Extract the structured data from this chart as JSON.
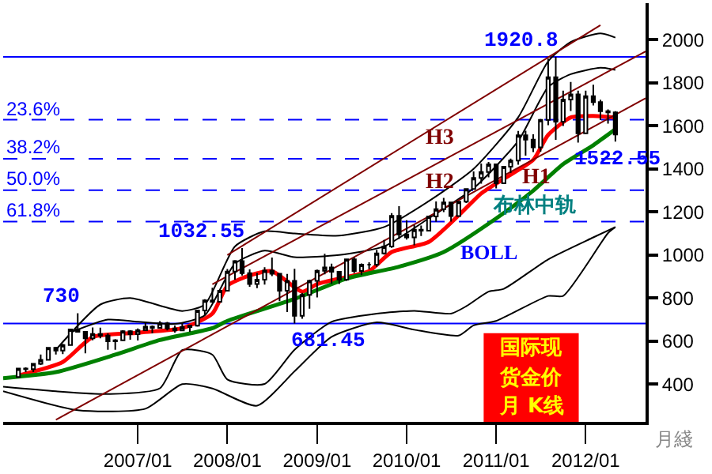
{
  "chart_data": {
    "type": "candlestick",
    "xlabel": "月綫",
    "x": [
      "2005-09",
      "2005-10",
      "2005-11",
      "2005-12",
      "2006-01",
      "2006-02",
      "2006-03",
      "2006-04",
      "2006-05",
      "2006-06",
      "2006-07",
      "2006-08",
      "2006-09",
      "2006-10",
      "2006-11",
      "2006-12",
      "2007-01",
      "2007-02",
      "2007-03",
      "2007-04",
      "2007-05",
      "2007-06",
      "2007-07",
      "2007-08",
      "2007-09",
      "2007-10",
      "2007-11",
      "2007-12",
      "2008-01",
      "2008-02",
      "2008-03",
      "2008-04",
      "2008-05",
      "2008-06",
      "2008-07",
      "2008-08",
      "2008-09",
      "2008-10",
      "2008-11",
      "2008-12",
      "2009-01",
      "2009-02",
      "2009-03",
      "2009-04",
      "2009-05",
      "2009-06",
      "2009-07",
      "2009-08",
      "2009-09",
      "2009-10",
      "2009-11",
      "2009-12",
      "2010-01",
      "2010-02",
      "2010-03",
      "2010-04",
      "2010-05",
      "2010-06",
      "2010-07",
      "2010-08",
      "2010-09",
      "2010-10",
      "2010-11",
      "2010-12",
      "2011-01",
      "2011-02",
      "2011-03",
      "2011-04",
      "2011-05",
      "2011-06",
      "2011-07",
      "2011-08",
      "2011-09",
      "2011-10",
      "2011-11",
      "2011-12",
      "2012-01",
      "2012-02",
      "2012-03",
      "2012-04",
      "2012-05"
    ],
    "ohlc": [
      [
        433,
        474,
        432,
        473
      ],
      [
        473,
        478,
        456,
        470
      ],
      [
        470,
        497,
        456,
        495
      ],
      [
        495,
        538,
        489,
        513
      ],
      [
        513,
        571,
        513,
        569
      ],
      [
        569,
        574,
        538,
        556
      ],
      [
        556,
        587,
        540,
        582
      ],
      [
        582,
        654,
        582,
        654
      ],
      [
        654,
        730,
        642,
        643
      ],
      [
        643,
        646,
        543,
        613
      ],
      [
        613,
        664,
        604,
        633
      ],
      [
        633,
        663,
        613,
        626
      ],
      [
        626,
        636,
        560,
        599
      ],
      [
        599,
        609,
        560,
        604
      ],
      [
        604,
        651,
        603,
        646
      ],
      [
        646,
        651,
        607,
        632
      ],
      [
        632,
        659,
        603,
        651
      ],
      [
        651,
        691,
        648,
        667
      ],
      [
        667,
        673,
        636,
        662
      ],
      [
        662,
        693,
        660,
        683
      ],
      [
        683,
        689,
        650,
        659
      ],
      [
        659,
        673,
        640,
        650
      ],
      [
        650,
        684,
        647,
        665
      ],
      [
        665,
        675,
        643,
        672
      ],
      [
        672,
        745,
        667,
        742
      ],
      [
        742,
        795,
        722,
        789
      ],
      [
        789,
        848,
        778,
        783
      ],
      [
        783,
        839,
        781,
        834
      ],
      [
        834,
        935,
        834,
        923
      ],
      [
        923,
        976,
        886,
        972
      ],
      [
        972,
        1032.55,
        905,
        916
      ],
      [
        916,
        933,
        853,
        865
      ],
      [
        865,
        917,
        846,
        886
      ],
      [
        886,
        943,
        863,
        928
      ],
      [
        928,
        988,
        902,
        913
      ],
      [
        913,
        915,
        786,
        834
      ],
      [
        834,
        912,
        735,
        880
      ],
      [
        880,
        936,
        681.45,
        718
      ],
      [
        718,
        824,
        704,
        815
      ],
      [
        815,
        886,
        751,
        880
      ],
      [
        880,
        932,
        803,
        927
      ],
      [
        927,
        1006,
        910,
        942
      ],
      [
        942,
        960,
        866,
        922
      ],
      [
        922,
        925,
        865,
        886
      ],
      [
        886,
        981,
        880,
        980
      ],
      [
        980,
        989,
        916,
        926
      ],
      [
        926,
        961,
        907,
        955
      ],
      [
        955,
        966,
        934,
        955
      ],
      [
        955,
        1024,
        945,
        1008
      ],
      [
        1008,
        1070,
        1002,
        1040
      ],
      [
        1040,
        1195,
        1033,
        1182
      ],
      [
        1182,
        1227,
        1075,
        1096
      ],
      [
        1096,
        1162,
        1072,
        1082
      ],
      [
        1082,
        1140,
        1045,
        1118
      ],
      [
        1118,
        1137,
        1088,
        1113
      ],
      [
        1113,
        1181,
        1111,
        1179
      ],
      [
        1179,
        1249,
        1154,
        1213
      ],
      [
        1213,
        1265,
        1199,
        1244
      ],
      [
        1244,
        1245,
        1155,
        1181
      ],
      [
        1181,
        1250,
        1180,
        1248
      ],
      [
        1248,
        1310,
        1242,
        1307
      ],
      [
        1307,
        1388,
        1305,
        1358
      ],
      [
        1358,
        1425,
        1331,
        1386
      ],
      [
        1386,
        1432,
        1361,
        1421
      ],
      [
        1421,
        1424,
        1309,
        1333
      ],
      [
        1333,
        1411,
        1330,
        1410
      ],
      [
        1410,
        1448,
        1381,
        1439
      ],
      [
        1439,
        1576,
        1420,
        1556
      ],
      [
        1556,
        1577,
        1462,
        1536
      ],
      [
        1536,
        1561,
        1478,
        1500
      ],
      [
        1500,
        1632,
        1480,
        1628
      ],
      [
        1628,
        1912,
        1603,
        1826
      ],
      [
        1826,
        1920.8,
        1535,
        1620
      ],
      [
        1620,
        1764,
        1599,
        1722
      ],
      [
        1722,
        1804,
        1669,
        1746
      ],
      [
        1746,
        1764,
        1522.55,
        1565
      ],
      [
        1565,
        1764,
        1564,
        1738
      ],
      [
        1738,
        1791,
        1695,
        1710
      ],
      [
        1710,
        1721,
        1627,
        1668
      ],
      [
        1668,
        1676,
        1610,
        1663
      ],
      [
        1663,
        1668,
        1527,
        1560
      ]
    ],
    "color": "#000000",
    "series": [
      {
        "type": "line",
        "color": "#ff0000",
        "x": [
          "2005-09",
          "2006-03",
          "2006-07",
          "2007-01",
          "2007-07",
          "2007-11",
          "2008-01",
          "2008-04",
          "2008-07",
          "2008-11",
          "2009-01",
          "2009-05",
          "2009-08",
          "2009-11",
          "2010-04",
          "2010-08",
          "2010-11",
          "2011-02",
          "2011-06",
          "2011-08",
          "2011-11",
          "2012-02",
          "2012-05"
        ],
        "values": [
          440,
          503,
          619,
          639,
          660,
          728,
          857,
          905,
          925,
          830,
          865,
          898,
          925,
          1014,
          1061,
          1184,
          1286,
          1354,
          1442,
          1558,
          1639,
          1646,
          1639
        ]
      },
      {
        "type": "line",
        "color": "#008000",
        "x": [
          "2005-07",
          "2006-02",
          "2006-10",
          "2007-04",
          "2007-11",
          "2008-01",
          "2008-10",
          "2009-05",
          "2009-12",
          "2010-06",
          "2011-01",
          "2011-06",
          "2011-10",
          "2012-02",
          "2012-05"
        ],
        "values": [
          428,
          456,
          537,
          605,
          660,
          694,
          796,
          891,
          946,
          1014,
          1170,
          1299,
          1422,
          1510,
          1585
        ]
      },
      {
        "type": "line",
        "color": "#000000",
        "x": [
          "2006-02",
          "2006-08",
          "2006-12",
          "2007-07",
          "2007-10",
          "2008-02",
          "2008-06",
          "2008-10",
          "2009-04",
          "2009-10",
          "2010-04",
          "2010-10",
          "2011-04",
          "2011-08",
          "2011-11",
          "2012-03",
          "2012-05"
        ],
        "values": [
          560,
          770,
          800,
          740,
          770,
          1040,
          1110,
          1100,
          1090,
          1130,
          1250,
          1400,
          1640,
          1900,
          1990,
          2030,
          2010
        ]
      },
      {
        "type": "line",
        "color": "#000000",
        "x": [
          "2006-04",
          "2006-09",
          "2007-01",
          "2007-06",
          "2007-10",
          "2008-02",
          "2008-06",
          "2008-10",
          "2009-04",
          "2009-10",
          "2010-04",
          "2010-10",
          "2011-04",
          "2011-08",
          "2011-11",
          "2012-03",
          "2012-05"
        ],
        "values": [
          640,
          700,
          690,
          680,
          720,
          960,
          1020,
          990,
          1000,
          1040,
          1170,
          1310,
          1530,
          1780,
          1840,
          1870,
          1860
        ]
      },
      {
        "type": "line",
        "color": "#000000",
        "x": [
          "2005-07",
          "2006-02",
          "2006-09",
          "2007-04",
          "2007-07",
          "2007-11",
          "2008-01",
          "2008-06",
          "2008-10",
          "2009-03",
          "2009-09",
          "2010-02",
          "2010-07",
          "2010-09",
          "2010-12",
          "2011-02",
          "2011-08",
          "2012-02",
          "2012-05"
        ],
        "values": [
          388,
          367,
          354,
          381,
          558,
          537,
          422,
          401,
          560,
          690,
          728,
          741,
          728,
          762,
          830,
          843,
          980,
          1082,
          1130
        ]
      },
      {
        "type": "line",
        "color": "#000000",
        "x": [
          "2005-07",
          "2006-05",
          "2007-02",
          "2007-07",
          "2007-11",
          "2008-05",
          "2008-10",
          "2009-03",
          "2009-09",
          "2010-02",
          "2010-08",
          "2010-10",
          "2011-01",
          "2011-08",
          "2011-10",
          "2012-04",
          "2012-05"
        ],
        "values": [
          367,
          279,
          286,
          400,
          380,
          300,
          460,
          620,
          687,
          653,
          626,
          673,
          694,
          810,
          810,
          1102,
          1130
        ]
      },
      {
        "type": "line",
        "color": "#800000",
        "x": [
          "2006-02",
          "2012-09"
        ],
        "values": [
          235,
          1728
        ]
      },
      {
        "type": "line",
        "color": "#800000",
        "x": [
          "2007-11",
          "2012-09"
        ],
        "values": [
          864,
          1946
        ]
      },
      {
        "type": "line",
        "color": "#800000",
        "x": [
          "2008-01",
          "2012-03"
        ],
        "values": [
          1000,
          2068
        ]
      }
    ],
    "ref_lines": [
      {
        "axis": "y",
        "value": 1920.8,
        "label": null,
        "color": "#0000ff",
        "line_style": "solid"
      },
      {
        "axis": "y",
        "value": 1628.3,
        "label": null,
        "color": "#0000ff",
        "line_style": "dashed"
      },
      {
        "axis": "y",
        "value": 1447.4,
        "label": null,
        "color": "#0000ff",
        "line_style": "dashed"
      },
      {
        "axis": "y",
        "value": 1301.1,
        "label": null,
        "color": "#0000ff",
        "line_style": "dashed"
      },
      {
        "axis": "y",
        "value": 1154.9,
        "label": null,
        "color": "#0000ff",
        "line_style": "dashed"
      },
      {
        "axis": "y",
        "value": 681.45,
        "label": null,
        "color": "#0000ff",
        "line_style": "solid"
      }
    ],
    "annotations": [
      {
        "text": "1920.8",
        "x": "2011-09",
        "y": 1920.8
      },
      {
        "text": "1522.55",
        "x": "2011-12",
        "y": 1522.55
      },
      {
        "text": "1032.55",
        "x": "2008-03",
        "y": 1032.55
      },
      {
        "text": "730",
        "x": "2006-05",
        "y": 730
      },
      {
        "text": "681.45",
        "x": "2008-10",
        "y": 681.45
      },
      "23.6%",
      "38.2%",
      "50.0%",
      "61.8%",
      "H3",
      "H2",
      "H1",
      "布林中轨",
      "BOLL",
      "国际现",
      "货金价",
      "月 K线"
    ],
    "xlim": [
      "2005-07",
      "2012-09"
    ],
    "xticks": [
      {
        "value": "2007-01",
        "label": "2007/01"
      },
      {
        "value": "2008-01",
        "label": "2008/01"
      },
      {
        "value": "2009-01",
        "label": "2009/01"
      },
      {
        "value": "2010-01",
        "label": "2010/01"
      },
      {
        "value": "2011-01",
        "label": "2011/01"
      },
      {
        "value": "2012-01",
        "label": "2012/01"
      }
    ],
    "ylim": [
      225,
      2170
    ],
    "yticks": [
      400,
      600,
      800,
      1000,
      1200,
      1400,
      1600,
      1800,
      2000
    ],
    "grid": false
  }
}
